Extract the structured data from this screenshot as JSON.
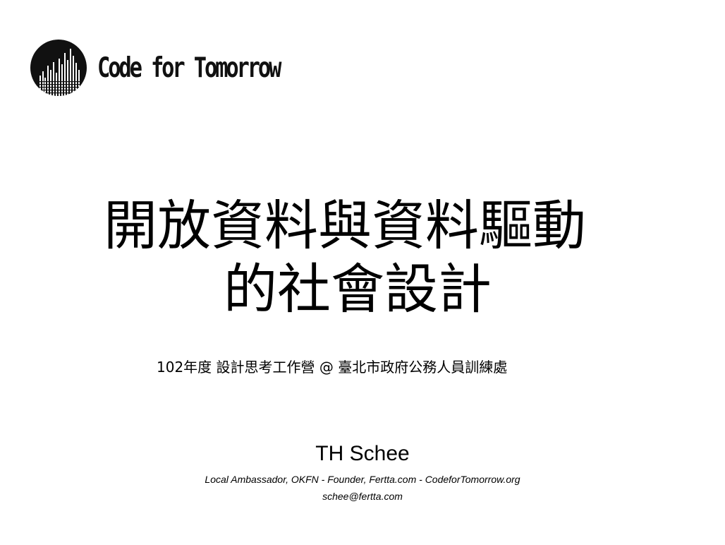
{
  "logo": {
    "icon": "city-skyline-circle-icon",
    "text": "Code for Tomorrow"
  },
  "title": {
    "line1": "開放資料與資料驅動",
    "line2": "的社會設計"
  },
  "subtitle": "102年度 設計思考工作營 @ 臺北市政府公務人員訓練處",
  "author": {
    "name": "TH Schee",
    "affiliation": "Local Ambassador, OKFN - Founder, Fertta.com - CodeforTomorrow.org",
    "email": "schee@fertta.com"
  },
  "colors": {
    "background": "#ffffff",
    "text": "#000000"
  }
}
